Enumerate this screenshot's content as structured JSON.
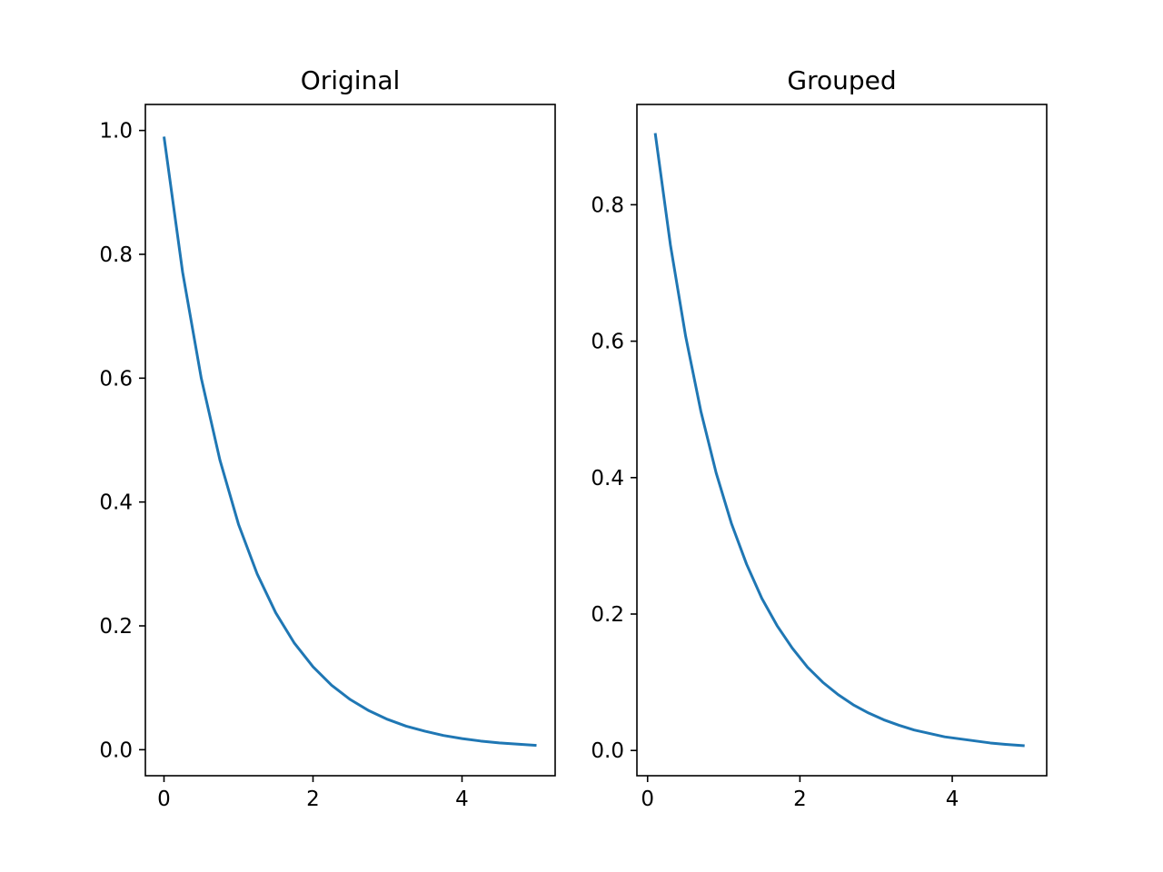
{
  "chart_data": [
    {
      "type": "line",
      "title": "Original",
      "xlabel": "",
      "ylabel": "",
      "xlim": [
        -0.25,
        5.25
      ],
      "ylim": [
        -0.042,
        1.042
      ],
      "xticks": [
        0,
        2,
        4
      ],
      "xtick_labels": [
        "0",
        "2",
        "4"
      ],
      "yticks": [
        0.0,
        0.2,
        0.4,
        0.6,
        0.8,
        1.0
      ],
      "ytick_labels": [
        "0.0",
        "0.2",
        "0.4",
        "0.6",
        "0.8",
        "1.0"
      ],
      "grid": false,
      "legend": "none",
      "series": [
        {
          "color": "#1f77b4",
          "x": [
            0.0,
            0.25,
            0.5,
            0.75,
            1.0,
            1.25,
            1.5,
            1.75,
            2.0,
            2.25,
            2.5,
            2.75,
            3.0,
            3.25,
            3.5,
            3.75,
            4.0,
            4.25,
            4.5,
            4.75,
            5.0
          ],
          "y": [
            0.99,
            0.771,
            0.6,
            0.468,
            0.364,
            0.284,
            0.221,
            0.172,
            0.134,
            0.104,
            0.081,
            0.063,
            0.049,
            0.038,
            0.03,
            0.023,
            0.018,
            0.014,
            0.011,
            0.009,
            0.007
          ]
        }
      ]
    },
    {
      "type": "line",
      "title": "Grouped",
      "xlabel": "",
      "ylabel": "",
      "xlim": [
        -0.14,
        5.24
      ],
      "ylim": [
        -0.037,
        0.947
      ],
      "xticks": [
        0,
        2,
        4
      ],
      "xtick_labels": [
        "0",
        "2",
        "4"
      ],
      "yticks": [
        0.0,
        0.2,
        0.4,
        0.6,
        0.8
      ],
      "ytick_labels": [
        "0.0",
        "0.2",
        "0.4",
        "0.6",
        "0.8"
      ],
      "grid": false,
      "legend": "none",
      "series": [
        {
          "color": "#1f77b4",
          "x": [
            0.1,
            0.3,
            0.5,
            0.7,
            0.9,
            1.1,
            1.3,
            1.5,
            1.7,
            1.9,
            2.1,
            2.3,
            2.5,
            2.7,
            2.9,
            3.1,
            3.3,
            3.5,
            3.7,
            3.9,
            4.1,
            4.3,
            4.5,
            4.7,
            4.95
          ],
          "y": [
            0.905,
            0.741,
            0.607,
            0.497,
            0.407,
            0.333,
            0.273,
            0.223,
            0.183,
            0.15,
            0.122,
            0.1,
            0.082,
            0.067,
            0.055,
            0.045,
            0.037,
            0.03,
            0.025,
            0.02,
            0.017,
            0.014,
            0.011,
            0.009,
            0.007
          ]
        }
      ]
    }
  ]
}
